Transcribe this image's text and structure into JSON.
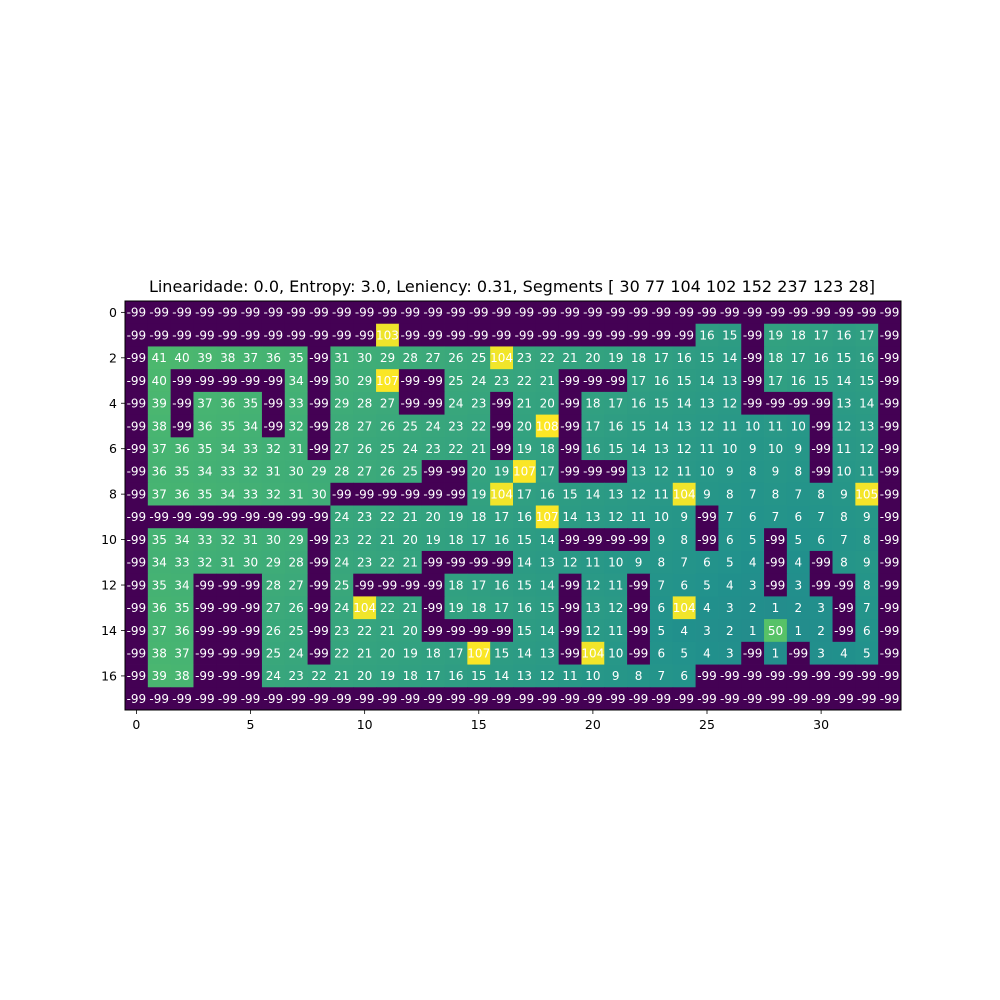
{
  "chart_data": {
    "type": "heatmap",
    "title": "Linearidade: 0.0, Entropy: 3.0, Leniency: 0.31, Segments [ 30  77 104 102 152 237 123  28]",
    "xlabel": "",
    "ylabel": "",
    "colormap": "viridis",
    "x_ticks": [
      0,
      5,
      10,
      15,
      20,
      25,
      30
    ],
    "y_ticks": [
      0,
      2,
      4,
      6,
      8,
      10,
      12,
      14,
      16
    ],
    "grid": false,
    "rows": [
      [
        -99,
        -99,
        -99,
        -99,
        -99,
        -99,
        -99,
        -99,
        -99,
        -99,
        -99,
        -99,
        -99,
        -99,
        -99,
        -99,
        -99,
        -99,
        -99,
        -99,
        -99,
        -99,
        -99,
        -99,
        -99,
        -99,
        -99,
        -99,
        -99,
        -99,
        -99,
        -99,
        -99,
        -99
      ],
      [
        -99,
        -99,
        -99,
        -99,
        -99,
        -99,
        -99,
        -99,
        -99,
        -99,
        -99,
        103,
        -99,
        -99,
        -99,
        -99,
        -99,
        -99,
        -99,
        -99,
        -99,
        -99,
        -99,
        -99,
        -99,
        16,
        15,
        -99,
        19,
        18,
        17,
        16,
        17,
        -99
      ],
      [
        -99,
        41,
        40,
        39,
        38,
        37,
        36,
        35,
        -99,
        31,
        30,
        29,
        28,
        27,
        26,
        25,
        104,
        23,
        22,
        21,
        20,
        19,
        18,
        17,
        16,
        15,
        14,
        -99,
        18,
        17,
        16,
        15,
        16,
        -99
      ],
      [
        -99,
        40,
        -99,
        -99,
        -99,
        -99,
        -99,
        34,
        -99,
        30,
        29,
        107,
        -99,
        -99,
        25,
        24,
        23,
        22,
        21,
        -99,
        -99,
        -99,
        17,
        16,
        15,
        14,
        13,
        -99,
        17,
        16,
        15,
        14,
        15,
        -99
      ],
      [
        -99,
        39,
        -99,
        37,
        36,
        35,
        -99,
        33,
        -99,
        29,
        28,
        27,
        -99,
        -99,
        24,
        23,
        -99,
        21,
        20,
        -99,
        18,
        17,
        16,
        15,
        14,
        13,
        12,
        -99,
        -99,
        -99,
        -99,
        13,
        14,
        -99
      ],
      [
        -99,
        38,
        -99,
        36,
        35,
        34,
        -99,
        32,
        -99,
        28,
        27,
        26,
        25,
        24,
        23,
        22,
        -99,
        20,
        108,
        -99,
        17,
        16,
        15,
        14,
        13,
        12,
        11,
        10,
        11,
        10,
        -99,
        12,
        13,
        -99
      ],
      [
        -99,
        37,
        36,
        35,
        34,
        33,
        32,
        31,
        -99,
        27,
        26,
        25,
        24,
        23,
        22,
        21,
        -99,
        19,
        18,
        -99,
        16,
        15,
        14,
        13,
        12,
        11,
        10,
        9,
        10,
        9,
        -99,
        11,
        12,
        -99
      ],
      [
        -99,
        36,
        35,
        34,
        33,
        32,
        31,
        30,
        29,
        28,
        27,
        26,
        25,
        -99,
        -99,
        20,
        19,
        107,
        17,
        -99,
        -99,
        -99,
        13,
        12,
        11,
        10,
        9,
        8,
        9,
        8,
        -99,
        10,
        11,
        -99
      ],
      [
        -99,
        37,
        36,
        35,
        34,
        33,
        32,
        31,
        30,
        -99,
        -99,
        -99,
        -99,
        -99,
        -99,
        19,
        104,
        17,
        16,
        15,
        14,
        13,
        12,
        11,
        104,
        9,
        8,
        7,
        8,
        7,
        8,
        9,
        105,
        -99
      ],
      [
        -99,
        -99,
        -99,
        -99,
        -99,
        -99,
        -99,
        -99,
        -99,
        24,
        23,
        22,
        21,
        20,
        19,
        18,
        17,
        16,
        107,
        14,
        13,
        12,
        11,
        10,
        9,
        -99,
        7,
        6,
        7,
        6,
        7,
        8,
        9,
        -99
      ],
      [
        -99,
        35,
        34,
        33,
        32,
        31,
        30,
        29,
        -99,
        23,
        22,
        21,
        20,
        19,
        18,
        17,
        16,
        15,
        14,
        -99,
        -99,
        -99,
        -99,
        9,
        8,
        -99,
        6,
        5,
        -99,
        5,
        6,
        7,
        8,
        -99
      ],
      [
        -99,
        34,
        33,
        32,
        31,
        30,
        29,
        28,
        -99,
        24,
        23,
        22,
        21,
        -99,
        -99,
        -99,
        -99,
        14,
        13,
        12,
        11,
        10,
        9,
        8,
        7,
        6,
        5,
        4,
        -99,
        4,
        -99,
        8,
        9,
        -99
      ],
      [
        -99,
        35,
        34,
        -99,
        -99,
        -99,
        28,
        27,
        -99,
        25,
        -99,
        -99,
        -99,
        -99,
        18,
        17,
        16,
        15,
        14,
        -99,
        12,
        11,
        -99,
        7,
        6,
        5,
        4,
        3,
        -99,
        3,
        -99,
        -99,
        8,
        -99
      ],
      [
        -99,
        36,
        35,
        -99,
        -99,
        -99,
        27,
        26,
        -99,
        24,
        104,
        22,
        21,
        -99,
        19,
        18,
        17,
        16,
        15,
        -99,
        13,
        12,
        -99,
        6,
        104,
        4,
        3,
        2,
        1,
        2,
        3,
        -99,
        7,
        -99
      ],
      [
        -99,
        37,
        36,
        -99,
        -99,
        -99,
        26,
        25,
        -99,
        23,
        22,
        21,
        20,
        -99,
        -99,
        -99,
        -99,
        15,
        14,
        -99,
        12,
        11,
        -99,
        5,
        4,
        3,
        2,
        1,
        50,
        1,
        2,
        -99,
        6,
        -99
      ],
      [
        -99,
        38,
        37,
        -99,
        -99,
        -99,
        25,
        24,
        -99,
        22,
        21,
        20,
        19,
        18,
        17,
        107,
        15,
        14,
        13,
        -99,
        104,
        10,
        -99,
        6,
        5,
        4,
        3,
        -99,
        1,
        -99,
        3,
        4,
        5,
        -99
      ],
      [
        -99,
        39,
        38,
        -99,
        -99,
        -99,
        24,
        23,
        22,
        21,
        20,
        19,
        18,
        17,
        16,
        15,
        14,
        13,
        12,
        11,
        10,
        9,
        8,
        7,
        6,
        -99,
        -99,
        -99,
        -99,
        -99,
        -99,
        -99,
        -99,
        -99
      ],
      [
        -99,
        -99,
        -99,
        -99,
        -99,
        -99,
        -99,
        -99,
        -99,
        -99,
        -99,
        -99,
        -99,
        -99,
        -99,
        -99,
        -99,
        -99,
        -99,
        -99,
        -99,
        -99,
        -99,
        -99,
        -99,
        -99,
        -99,
        -99,
        -99,
        -99,
        -99,
        -99,
        -99,
        -99
      ]
    ]
  }
}
